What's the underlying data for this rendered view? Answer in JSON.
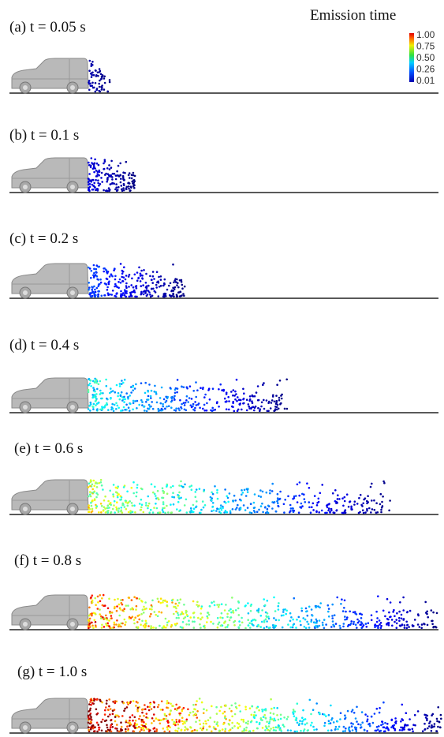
{
  "panels": [
    {
      "label": "(a) t = 0.05 s"
    },
    {
      "label": "(b) t = 0.1 s"
    },
    {
      "label": "(c) t = 0.2 s"
    },
    {
      "label": "(d) t = 0.4 s"
    },
    {
      "label": "(e) t = 0.6 s"
    },
    {
      "label": "(f) t = 0.8 s"
    },
    {
      "label": "(g) t = 1.0 s"
    }
  ],
  "legend": {
    "title": "Emission time",
    "ticks": [
      "1.00",
      "0.75",
      "0.50",
      "0.26",
      "0.01"
    ]
  }
}
